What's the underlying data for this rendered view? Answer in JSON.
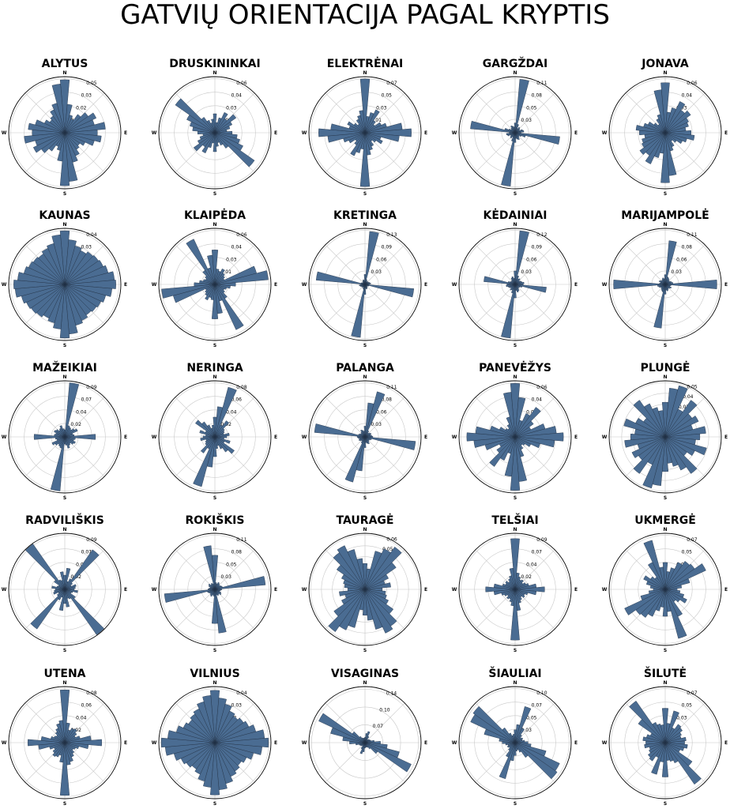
{
  "title": "GATVIŲ ORIENTACIJA PAGAL KRYPTIS",
  "direction_labels": {
    "n": "N",
    "e": "E",
    "s": "S",
    "w": "W"
  },
  "colors": {
    "bar_fill": "#4a6c92",
    "bar_edge": "#1f2f42",
    "grid": "#c8c8c8",
    "outer_ring": "#000000"
  },
  "chart_data": [
    {
      "type": "polar-bar",
      "title": "ALYTUS",
      "bins_deg": 10,
      "ticks": [
        "0.01",
        "0.02",
        "0.03",
        "0.05"
      ],
      "max": 0.055,
      "values": [
        0.052,
        0.028,
        0.018,
        0.015,
        0.022,
        0.028,
        0.034,
        0.03,
        0.04,
        0.032,
        0.036,
        0.03,
        0.022,
        0.018,
        0.02,
        0.025,
        0.03,
        0.048,
        0.052,
        0.028,
        0.018,
        0.015,
        0.022,
        0.028,
        0.034,
        0.03,
        0.04,
        0.032,
        0.036,
        0.03,
        0.022,
        0.018,
        0.02,
        0.025,
        0.03,
        0.048
      ]
    },
    {
      "type": "polar-bar",
      "title": "DRUSKININKAI",
      "bins_deg": 10,
      "ticks": [
        "0.01",
        "0.03",
        "0.04",
        "0.06"
      ],
      "max": 0.065,
      "values": [
        0.022,
        0.012,
        0.018,
        0.026,
        0.02,
        0.03,
        0.022,
        0.018,
        0.014,
        0.02,
        0.026,
        0.03,
        0.036,
        0.056,
        0.022,
        0.016,
        0.012,
        0.016,
        0.022,
        0.012,
        0.018,
        0.026,
        0.02,
        0.03,
        0.022,
        0.018,
        0.014,
        0.02,
        0.026,
        0.03,
        0.036,
        0.056,
        0.022,
        0.016,
        0.012,
        0.016
      ]
    },
    {
      "type": "polar-bar",
      "title": "ELEKTRĖNAI",
      "bins_deg": 10,
      "ticks": [
        "0.01",
        "0.03",
        "0.05",
        "0.07"
      ],
      "max": 0.075,
      "values": [
        0.072,
        0.022,
        0.028,
        0.034,
        0.02,
        0.016,
        0.024,
        0.03,
        0.05,
        0.062,
        0.046,
        0.022,
        0.026,
        0.018,
        0.014,
        0.02,
        0.024,
        0.03,
        0.072,
        0.022,
        0.028,
        0.034,
        0.02,
        0.016,
        0.024,
        0.03,
        0.05,
        0.062,
        0.046,
        0.022,
        0.026,
        0.018,
        0.014,
        0.02,
        0.024,
        0.03
      ]
    },
    {
      "type": "polar-bar",
      "title": "GARGŽDAI",
      "bins_deg": 10,
      "ticks": [
        "0.03",
        "0.05",
        "0.08",
        "0.11"
      ],
      "max": 0.115,
      "values": [
        0.02,
        0.11,
        0.018,
        0.01,
        0.014,
        0.012,
        0.01,
        0.016,
        0.018,
        0.012,
        0.092,
        0.022,
        0.014,
        0.01,
        0.012,
        0.016,
        0.014,
        0.012,
        0.02,
        0.11,
        0.018,
        0.01,
        0.014,
        0.012,
        0.01,
        0.016,
        0.018,
        0.012,
        0.092,
        0.022,
        0.014,
        0.01,
        0.012,
        0.016,
        0.014,
        0.012
      ]
    },
    {
      "type": "polar-bar",
      "title": "JONAVA",
      "bins_deg": 10,
      "ticks": [
        "0.02",
        "0.03",
        "0.04",
        "0.06"
      ],
      "max": 0.065,
      "values": [
        0.058,
        0.024,
        0.03,
        0.04,
        0.032,
        0.036,
        0.03,
        0.028,
        0.024,
        0.03,
        0.034,
        0.026,
        0.022,
        0.016,
        0.012,
        0.018,
        0.022,
        0.05,
        0.058,
        0.024,
        0.03,
        0.04,
        0.032,
        0.036,
        0.03,
        0.028,
        0.024,
        0.03,
        0.034,
        0.026,
        0.022,
        0.016,
        0.012,
        0.018,
        0.022,
        0.05
      ]
    },
    {
      "type": "polar-bar",
      "title": "KAUNAS",
      "bins_deg": 10,
      "ticks": [
        "0.01",
        "0.02",
        "0.03",
        "0.04"
      ],
      "max": 0.045,
      "values": [
        0.043,
        0.036,
        0.032,
        0.03,
        0.032,
        0.033,
        0.034,
        0.036,
        0.04,
        0.041,
        0.038,
        0.034,
        0.032,
        0.031,
        0.03,
        0.032,
        0.034,
        0.04,
        0.043,
        0.036,
        0.032,
        0.03,
        0.032,
        0.033,
        0.034,
        0.036,
        0.04,
        0.041,
        0.038,
        0.034,
        0.032,
        0.031,
        0.03,
        0.032,
        0.034,
        0.04
      ]
    },
    {
      "type": "polar-bar",
      "title": "KLAIPĖDA",
      "bins_deg": 10,
      "ticks": [
        "0.01",
        "0.03",
        "0.04",
        "0.06"
      ],
      "max": 0.065,
      "values": [
        0.04,
        0.018,
        0.016,
        0.02,
        0.016,
        0.014,
        0.012,
        0.05,
        0.062,
        0.024,
        0.018,
        0.014,
        0.012,
        0.014,
        0.02,
        0.058,
        0.02,
        0.034,
        0.04,
        0.018,
        0.016,
        0.02,
        0.016,
        0.014,
        0.012,
        0.05,
        0.062,
        0.024,
        0.018,
        0.014,
        0.012,
        0.014,
        0.02,
        0.058,
        0.02,
        0.034
      ]
    },
    {
      "type": "polar-bar",
      "title": "KRETINGA",
      "bins_deg": 10,
      "ticks": [
        "0.03",
        "0.06",
        "0.09",
        "0.13"
      ],
      "max": 0.135,
      "values": [
        0.024,
        0.128,
        0.012,
        0.008,
        0.01,
        0.008,
        0.01,
        0.012,
        0.014,
        0.01,
        0.118,
        0.01,
        0.008,
        0.006,
        0.008,
        0.01,
        0.012,
        0.01,
        0.024,
        0.128,
        0.012,
        0.008,
        0.01,
        0.008,
        0.01,
        0.012,
        0.014,
        0.01,
        0.118,
        0.01,
        0.008,
        0.006,
        0.008,
        0.01,
        0.012,
        0.01
      ]
    },
    {
      "type": "polar-bar",
      "title": "KĖDAINIAI",
      "bins_deg": 10,
      "ticks": [
        "0.03",
        "0.06",
        "0.09",
        "0.12"
      ],
      "max": 0.125,
      "values": [
        0.03,
        0.12,
        0.02,
        0.014,
        0.016,
        0.012,
        0.014,
        0.016,
        0.02,
        0.018,
        0.07,
        0.016,
        0.012,
        0.01,
        0.012,
        0.016,
        0.018,
        0.014,
        0.03,
        0.12,
        0.02,
        0.014,
        0.016,
        0.012,
        0.014,
        0.016,
        0.02,
        0.018,
        0.07,
        0.016,
        0.012,
        0.01,
        0.012,
        0.016,
        0.018,
        0.014
      ]
    },
    {
      "type": "polar-bar",
      "title": "MARIJAMPOLĖ",
      "bins_deg": 10,
      "ticks": [
        "0.03",
        "0.06",
        "0.08",
        "0.11"
      ],
      "max": 0.115,
      "values": [
        0.02,
        0.09,
        0.016,
        0.014,
        0.012,
        0.01,
        0.012,
        0.014,
        0.016,
        0.106,
        0.012,
        0.01,
        0.014,
        0.012,
        0.01,
        0.012,
        0.014,
        0.012,
        0.02,
        0.09,
        0.016,
        0.014,
        0.012,
        0.01,
        0.012,
        0.014,
        0.016,
        0.106,
        0.012,
        0.01,
        0.014,
        0.012,
        0.01,
        0.012,
        0.014,
        0.012
      ]
    },
    {
      "type": "polar-bar",
      "title": "MAŽEIKIAI",
      "bins_deg": 10,
      "ticks": [
        "0.02",
        "0.04",
        "0.07",
        "0.09"
      ],
      "max": 0.095,
      "values": [
        0.012,
        0.092,
        0.02,
        0.018,
        0.016,
        0.02,
        0.024,
        0.014,
        0.016,
        0.052,
        0.018,
        0.016,
        0.02,
        0.018,
        0.014,
        0.016,
        0.02,
        0.014,
        0.012,
        0.092,
        0.02,
        0.018,
        0.016,
        0.02,
        0.024,
        0.014,
        0.016,
        0.052,
        0.018,
        0.016,
        0.02,
        0.018,
        0.014,
        0.016,
        0.02,
        0.014
      ]
    },
    {
      "type": "polar-bar",
      "title": "NERINGA",
      "bins_deg": 10,
      "ticks": [
        "0.02",
        "0.04",
        "0.06",
        "0.08"
      ],
      "max": 0.085,
      "values": [
        0.03,
        0.046,
        0.078,
        0.02,
        0.03,
        0.018,
        0.016,
        0.014,
        0.022,
        0.018,
        0.014,
        0.024,
        0.016,
        0.036,
        0.028,
        0.02,
        0.014,
        0.018,
        0.03,
        0.046,
        0.078,
        0.02,
        0.03,
        0.018,
        0.016,
        0.014,
        0.022,
        0.018,
        0.014,
        0.024,
        0.016,
        0.036,
        0.028,
        0.02,
        0.014,
        0.018
      ]
    },
    {
      "type": "polar-bar",
      "title": "PALANGA",
      "bins_deg": 10,
      "ticks": [
        "0.03",
        "0.06",
        "0.08",
        "0.11"
      ],
      "max": 0.115,
      "values": [
        0.022,
        0.07,
        0.096,
        0.014,
        0.01,
        0.012,
        0.014,
        0.012,
        0.014,
        0.016,
        0.104,
        0.014,
        0.012,
        0.01,
        0.012,
        0.016,
        0.014,
        0.012,
        0.022,
        0.07,
        0.096,
        0.014,
        0.01,
        0.012,
        0.014,
        0.012,
        0.014,
        0.016,
        0.104,
        0.014,
        0.012,
        0.01,
        0.012,
        0.016,
        0.014,
        0.012
      ]
    },
    {
      "type": "polar-bar",
      "title": "PANEVĖŽYS",
      "bins_deg": 10,
      "ticks": [
        "0.01",
        "0.03",
        "0.04",
        "0.06"
      ],
      "max": 0.065,
      "values": [
        0.062,
        0.046,
        0.02,
        0.03,
        0.042,
        0.026,
        0.02,
        0.036,
        0.048,
        0.056,
        0.046,
        0.03,
        0.02,
        0.014,
        0.012,
        0.016,
        0.024,
        0.052,
        0.062,
        0.046,
        0.02,
        0.03,
        0.042,
        0.026,
        0.02,
        0.036,
        0.048,
        0.056,
        0.046,
        0.03,
        0.02,
        0.014,
        0.012,
        0.016,
        0.024,
        0.052
      ]
    },
    {
      "type": "polar-bar",
      "title": "PLUNGĖ",
      "bins_deg": 10,
      "ticks": [
        "0.01",
        "0.02",
        "0.03",
        "0.04",
        "0.05"
      ],
      "max": 0.055,
      "values": [
        0.034,
        0.048,
        0.052,
        0.03,
        0.044,
        0.032,
        0.036,
        0.028,
        0.04,
        0.034,
        0.03,
        0.042,
        0.032,
        0.026,
        0.044,
        0.036,
        0.03,
        0.026,
        0.034,
        0.048,
        0.052,
        0.03,
        0.044,
        0.032,
        0.036,
        0.028,
        0.04,
        0.034,
        0.03,
        0.042,
        0.032,
        0.026,
        0.044,
        0.036,
        0.03,
        0.026
      ]
    },
    {
      "type": "polar-bar",
      "title": "RADVILIŠKIS",
      "bins_deg": 10,
      "ticks": [
        "0.02",
        "0.04",
        "0.07",
        "0.09"
      ],
      "max": 0.095,
      "values": [
        0.024,
        0.036,
        0.014,
        0.02,
        0.082,
        0.016,
        0.012,
        0.02,
        0.018,
        0.016,
        0.022,
        0.014,
        0.012,
        0.022,
        0.094,
        0.018,
        0.016,
        0.03,
        0.024,
        0.036,
        0.014,
        0.02,
        0.082,
        0.016,
        0.012,
        0.02,
        0.018,
        0.016,
        0.022,
        0.014,
        0.012,
        0.022,
        0.094,
        0.018,
        0.016,
        0.03
      ]
    },
    {
      "type": "polar-bar",
      "title": "ROKIŠKIS",
      "bins_deg": 10,
      "ticks": [
        "0.03",
        "0.05",
        "0.08",
        "0.11"
      ],
      "max": 0.115,
      "values": [
        0.07,
        0.014,
        0.012,
        0.016,
        0.014,
        0.012,
        0.014,
        0.016,
        0.104,
        0.014,
        0.012,
        0.01,
        0.014,
        0.016,
        0.012,
        0.014,
        0.012,
        0.09,
        0.07,
        0.014,
        0.012,
        0.016,
        0.014,
        0.012,
        0.014,
        0.016,
        0.104,
        0.014,
        0.012,
        0.01,
        0.014,
        0.016,
        0.012,
        0.014,
        0.012,
        0.09
      ]
    },
    {
      "type": "polar-bar",
      "title": "TAURAGĖ",
      "bins_deg": 10,
      "ticks": [
        "0.01",
        "0.03",
        "0.04",
        "0.05",
        "0.06"
      ],
      "max": 0.065,
      "values": [
        0.03,
        0.024,
        0.046,
        0.052,
        0.06,
        0.044,
        0.03,
        0.024,
        0.03,
        0.02,
        0.024,
        0.026,
        0.03,
        0.04,
        0.052,
        0.056,
        0.048,
        0.036,
        0.03,
        0.024,
        0.046,
        0.052,
        0.06,
        0.044,
        0.03,
        0.024,
        0.03,
        0.02,
        0.024,
        0.026,
        0.03,
        0.04,
        0.052,
        0.056,
        0.048,
        0.036
      ]
    },
    {
      "type": "polar-bar",
      "title": "TELŠIAI",
      "bins_deg": 10,
      "ticks": [
        "0.02",
        "0.04",
        "0.07",
        "0.09"
      ],
      "max": 0.095,
      "values": [
        0.086,
        0.028,
        0.022,
        0.018,
        0.02,
        0.016,
        0.02,
        0.024,
        0.036,
        0.05,
        0.036,
        0.022,
        0.018,
        0.02,
        0.016,
        0.02,
        0.024,
        0.036,
        0.086,
        0.028,
        0.022,
        0.018,
        0.02,
        0.016,
        0.02,
        0.024,
        0.036,
        0.05,
        0.036,
        0.022,
        0.018,
        0.02,
        0.016,
        0.02,
        0.024,
        0.036
      ]
    },
    {
      "type": "polar-bar",
      "title": "UKMERGĖ",
      "bins_deg": 10,
      "ticks": [
        "0.01",
        "0.03",
        "0.05",
        "0.07"
      ],
      "max": 0.075,
      "values": [
        0.036,
        0.024,
        0.03,
        0.04,
        0.046,
        0.048,
        0.06,
        0.034,
        0.022,
        0.016,
        0.02,
        0.026,
        0.032,
        0.024,
        0.02,
        0.04,
        0.068,
        0.03,
        0.036,
        0.024,
        0.03,
        0.04,
        0.046,
        0.048,
        0.06,
        0.034,
        0.022,
        0.016,
        0.02,
        0.026,
        0.032,
        0.024,
        0.02,
        0.04,
        0.068,
        0.03
      ]
    },
    {
      "type": "polar-bar",
      "title": "UTENA",
      "bins_deg": 10,
      "ticks": [
        "0.02",
        "0.04",
        "0.06",
        "0.08"
      ],
      "max": 0.085,
      "values": [
        0.08,
        0.03,
        0.02,
        0.024,
        0.026,
        0.022,
        0.018,
        0.024,
        0.04,
        0.056,
        0.036,
        0.022,
        0.018,
        0.016,
        0.02,
        0.024,
        0.03,
        0.034,
        0.08,
        0.03,
        0.02,
        0.024,
        0.026,
        0.022,
        0.018,
        0.024,
        0.04,
        0.056,
        0.036,
        0.022,
        0.018,
        0.016,
        0.02,
        0.024,
        0.03,
        0.034
      ]
    },
    {
      "type": "polar-bar",
      "title": "VILNIUS",
      "bins_deg": 10,
      "ticks": [
        "0.01",
        "0.02",
        "0.03",
        "0.04"
      ],
      "max": 0.045,
      "values": [
        0.042,
        0.036,
        0.032,
        0.028,
        0.026,
        0.028,
        0.03,
        0.034,
        0.04,
        0.043,
        0.038,
        0.032,
        0.028,
        0.026,
        0.028,
        0.03,
        0.034,
        0.038,
        0.042,
        0.036,
        0.032,
        0.028,
        0.026,
        0.028,
        0.03,
        0.034,
        0.04,
        0.043,
        0.038,
        0.032,
        0.028,
        0.026,
        0.028,
        0.03,
        0.034,
        0.038
      ]
    },
    {
      "type": "polar-bar",
      "title": "VISAGINAS",
      "bins_deg": 10,
      "ticks": [
        "0.07",
        "0.10",
        "0.14"
      ],
      "max": 0.145,
      "values": [
        0.014,
        0.024,
        0.03,
        0.018,
        0.01,
        0.012,
        0.014,
        0.016,
        0.024,
        0.04,
        0.058,
        0.092,
        0.132,
        0.04,
        0.02,
        0.014,
        0.012,
        0.012,
        0.014,
        0.024,
        0.03,
        0.018,
        0.01,
        0.012,
        0.014,
        0.016,
        0.024,
        0.04,
        0.058,
        0.092,
        0.132,
        0.04,
        0.02,
        0.014,
        0.012,
        0.012
      ]
    },
    {
      "type": "polar-bar",
      "title": "ŠIAULIAI",
      "bins_deg": 10,
      "ticks": [
        "0.03",
        "0.05",
        "0.07",
        "0.10"
      ],
      "max": 0.105,
      "values": [
        0.024,
        0.034,
        0.07,
        0.03,
        0.018,
        0.014,
        0.016,
        0.014,
        0.018,
        0.024,
        0.03,
        0.06,
        0.092,
        0.096,
        0.034,
        0.02,
        0.014,
        0.016,
        0.024,
        0.034,
        0.07,
        0.03,
        0.018,
        0.014,
        0.016,
        0.014,
        0.018,
        0.024,
        0.03,
        0.06,
        0.092,
        0.096,
        0.034,
        0.02,
        0.014,
        0.016
      ]
    },
    {
      "type": "polar-bar",
      "title": "ŠILUTĖ",
      "bins_deg": 10,
      "ticks": [
        "0.02",
        "0.03",
        "0.05",
        "0.07"
      ],
      "max": 0.075,
      "values": [
        0.046,
        0.026,
        0.044,
        0.022,
        0.03,
        0.028,
        0.024,
        0.022,
        0.028,
        0.026,
        0.03,
        0.026,
        0.022,
        0.044,
        0.068,
        0.03,
        0.026,
        0.024,
        0.046,
        0.026,
        0.044,
        0.022,
        0.03,
        0.028,
        0.024,
        0.022,
        0.028,
        0.026,
        0.03,
        0.026,
        0.022,
        0.044,
        0.068,
        0.03,
        0.026,
        0.024
      ]
    }
  ]
}
